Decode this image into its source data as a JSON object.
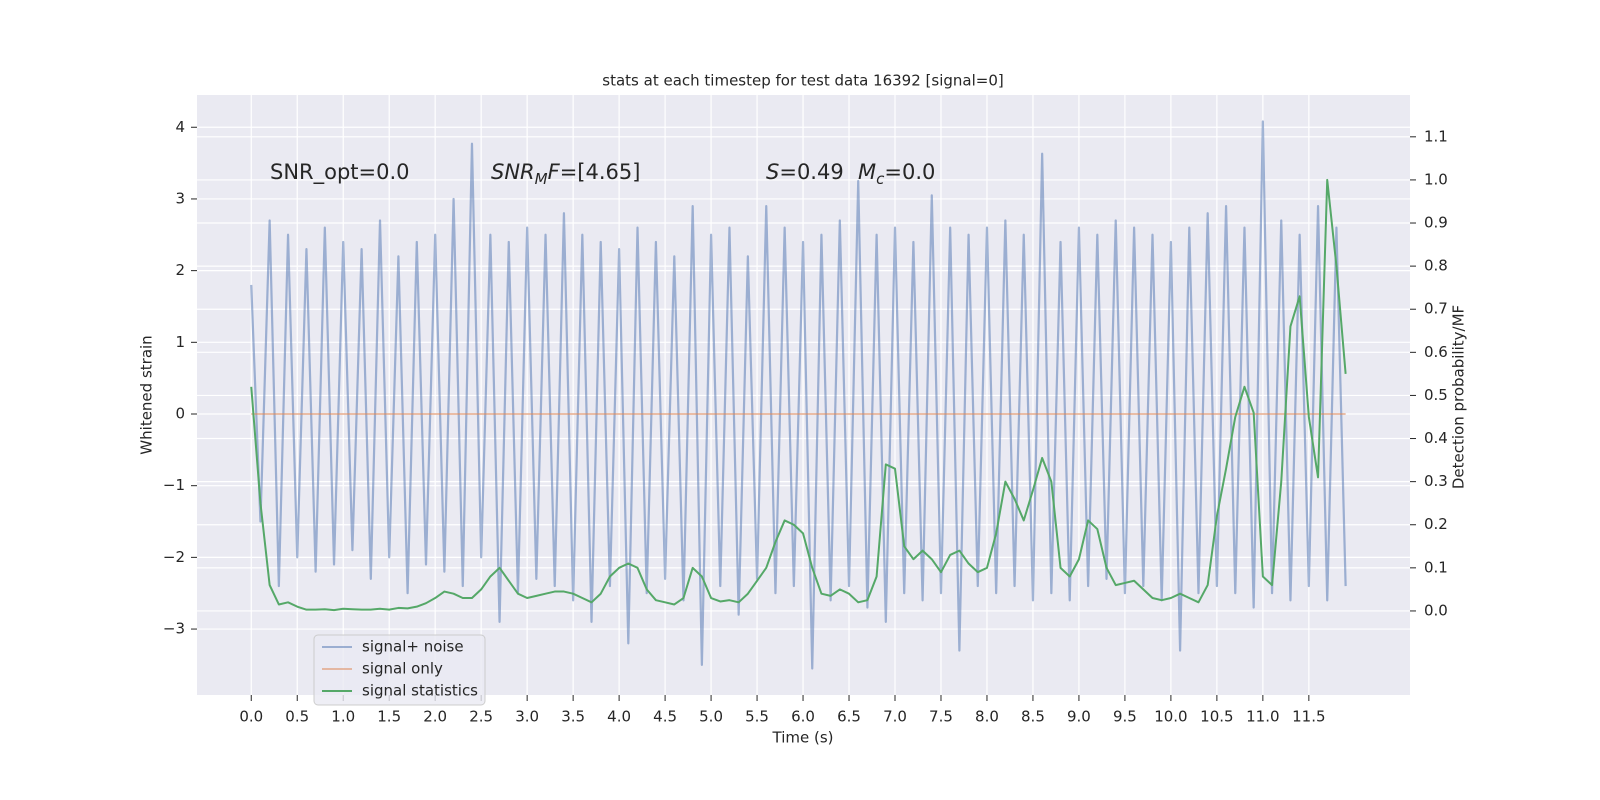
{
  "chart_data": {
    "type": "line",
    "title": "stats at each timestep for test data 16392 [signal=0]",
    "xlabel": "Time (s)",
    "ylabel": "Whitened strain",
    "y2label": "Detection probability/MF",
    "annotations": [
      [
        {
          "text": "SNR_opt=0.0"
        }
      ],
      [
        {
          "text": "SNR",
          "style": "italic"
        },
        {
          "text": "M",
          "style": "italic-sub"
        },
        {
          "text": "F",
          "style": "italic"
        },
        {
          "text": "=[4.65]"
        }
      ],
      [
        {
          "text": "S",
          "style": "italic"
        },
        {
          "text": "=0.49"
        }
      ],
      [
        {
          "text": "M",
          "style": "italic"
        },
        {
          "text": "c",
          "style": "italic-sub"
        },
        {
          "text": "=0.0"
        }
      ]
    ],
    "x": [
      0.0,
      0.1,
      0.2,
      0.3,
      0.4,
      0.5,
      0.6,
      0.7,
      0.8,
      0.9,
      1.0,
      1.1,
      1.2,
      1.3,
      1.4,
      1.5,
      1.6,
      1.7,
      1.8,
      1.9,
      2.0,
      2.1,
      2.2,
      2.3,
      2.4,
      2.5,
      2.6,
      2.7,
      2.8,
      2.9,
      3.0,
      3.1,
      3.2,
      3.3,
      3.4,
      3.5,
      3.6,
      3.7,
      3.8,
      3.9,
      4.0,
      4.1,
      4.2,
      4.3,
      4.4,
      4.5,
      4.6,
      4.7,
      4.8,
      4.9,
      5.0,
      5.1,
      5.2,
      5.3,
      5.4,
      5.5,
      5.6,
      5.7,
      5.8,
      5.9,
      6.0,
      6.1,
      6.2,
      6.3,
      6.4,
      6.5,
      6.6,
      6.7,
      6.8,
      6.9,
      7.0,
      7.1,
      7.2,
      7.3,
      7.4,
      7.5,
      7.6,
      7.7,
      7.8,
      7.9,
      8.0,
      8.1,
      8.2,
      8.3,
      8.4,
      8.5,
      8.6,
      8.7,
      8.8,
      8.9,
      9.0,
      9.1,
      9.2,
      9.3,
      9.4,
      9.5,
      9.6,
      9.7,
      9.8,
      9.9,
      10.0,
      10.1,
      10.2,
      10.3,
      10.4,
      10.5,
      10.6,
      10.7,
      10.8,
      10.9,
      11.0,
      11.1,
      11.2,
      11.3,
      11.4,
      11.5,
      11.6,
      11.7,
      11.8,
      11.9
    ],
    "series": [
      {
        "name": "signal+ noise",
        "color": "#4c72b0",
        "alpha": 0.5,
        "axis": "y",
        "values": [
          1.8,
          -1.5,
          2.7,
          -2.4,
          2.5,
          -2.0,
          2.3,
          -2.2,
          2.6,
          -2.1,
          2.4,
          -1.9,
          2.3,
          -2.3,
          2.7,
          -2.0,
          2.2,
          -2.5,
          2.4,
          -2.1,
          2.5,
          -2.2,
          3.0,
          -2.4,
          3.77,
          -2.0,
          2.5,
          -2.9,
          2.4,
          -2.5,
          2.6,
          -2.3,
          2.5,
          -2.4,
          2.8,
          -2.6,
          2.5,
          -2.9,
          2.4,
          -2.4,
          2.3,
          -3.2,
          2.6,
          -2.5,
          2.4,
          -2.3,
          2.2,
          -2.6,
          2.9,
          -3.5,
          2.5,
          -2.4,
          2.6,
          -2.8,
          2.2,
          -2.3,
          2.9,
          -2.5,
          2.6,
          -2.4,
          2.4,
          -3.55,
          2.5,
          -2.6,
          2.7,
          -2.4,
          3.25,
          -2.7,
          2.5,
          -2.9,
          2.6,
          -2.5,
          2.4,
          -2.6,
          3.05,
          -2.5,
          2.6,
          -3.3,
          2.5,
          -2.4,
          2.6,
          -2.5,
          2.7,
          -2.4,
          2.5,
          -2.6,
          3.63,
          -2.5,
          2.4,
          -2.6,
          2.6,
          -2.4,
          2.5,
          -2.3,
          2.7,
          -2.5,
          2.6,
          -2.4,
          2.5,
          -2.6,
          2.4,
          -3.3,
          2.6,
          -2.5,
          2.8,
          -2.4,
          2.9,
          -2.5,
          2.6,
          -2.7,
          4.08,
          -2.5,
          2.7,
          -2.6,
          2.5,
          -2.4,
          2.9,
          -2.6,
          2.6,
          -2.4
        ]
      },
      {
        "name": "signal only",
        "color": "#dd8452",
        "alpha": 0.5,
        "axis": "y",
        "values": [
          0,
          0,
          0,
          0,
          0,
          0,
          0,
          0,
          0,
          0,
          0,
          0,
          0,
          0,
          0,
          0,
          0,
          0,
          0,
          0,
          0,
          0,
          0,
          0,
          0,
          0,
          0,
          0,
          0,
          0,
          0,
          0,
          0,
          0,
          0,
          0,
          0,
          0,
          0,
          0,
          0,
          0,
          0,
          0,
          0,
          0,
          0,
          0,
          0,
          0,
          0,
          0,
          0,
          0,
          0,
          0,
          0,
          0,
          0,
          0,
          0,
          0,
          0,
          0,
          0,
          0,
          0,
          0,
          0,
          0,
          0,
          0,
          0,
          0,
          0,
          0,
          0,
          0,
          0,
          0,
          0,
          0,
          0,
          0,
          0,
          0,
          0,
          0,
          0,
          0,
          0,
          0,
          0,
          0,
          0,
          0,
          0,
          0,
          0,
          0,
          0,
          0,
          0,
          0,
          0,
          0,
          0,
          0,
          0,
          0,
          0,
          0,
          0,
          0,
          0,
          0,
          0,
          0,
          0,
          0
        ]
      },
      {
        "name": "signal statistics",
        "color": "#55a868",
        "alpha": 1,
        "axis": "y2",
        "values": [
          0.52,
          0.25,
          0.06,
          0.015,
          0.02,
          0.01,
          0.003,
          0.003,
          0.004,
          0.002,
          0.005,
          0.004,
          0.003,
          0.003,
          0.005,
          0.003,
          0.007,
          0.006,
          0.01,
          0.018,
          0.03,
          0.045,
          0.04,
          0.03,
          0.03,
          0.05,
          0.08,
          0.1,
          0.07,
          0.04,
          0.03,
          0.035,
          0.04,
          0.045,
          0.045,
          0.04,
          0.03,
          0.02,
          0.04,
          0.08,
          0.1,
          0.11,
          0.1,
          0.05,
          0.025,
          0.02,
          0.015,
          0.03,
          0.1,
          0.08,
          0.03,
          0.022,
          0.025,
          0.02,
          0.04,
          0.07,
          0.1,
          0.16,
          0.21,
          0.2,
          0.18,
          0.1,
          0.04,
          0.035,
          0.05,
          0.04,
          0.02,
          0.025,
          0.08,
          0.34,
          0.33,
          0.15,
          0.12,
          0.14,
          0.12,
          0.09,
          0.13,
          0.14,
          0.11,
          0.09,
          0.1,
          0.18,
          0.3,
          0.26,
          0.21,
          0.28,
          0.355,
          0.3,
          0.1,
          0.08,
          0.12,
          0.21,
          0.19,
          0.1,
          0.06,
          0.065,
          0.07,
          0.05,
          0.03,
          0.025,
          0.03,
          0.04,
          0.03,
          0.02,
          0.06,
          0.22,
          0.33,
          0.45,
          0.52,
          0.46,
          0.08,
          0.06,
          0.3,
          0.66,
          0.73,
          0.45,
          0.31,
          1.0,
          0.8,
          0.55
        ]
      }
    ],
    "xlim": [
      -0.59,
      12.6
    ],
    "xticks": [
      {
        "value": 0,
        "label": "0.0"
      },
      0.5,
      {
        "value": 1,
        "label": "1.0"
      },
      1.5,
      {
        "value": 2,
        "label": "2.0"
      },
      2.5,
      {
        "value": 3,
        "label": "3.0"
      },
      3.5,
      {
        "value": 4,
        "label": "4.0"
      },
      4.5,
      {
        "value": 5,
        "label": "5.0"
      },
      5.5,
      {
        "value": 6,
        "label": "6.0"
      },
      6.5,
      {
        "value": 7,
        "label": "7.0"
      },
      7.5,
      {
        "value": 8,
        "label": "8.0"
      },
      8.5,
      {
        "value": 9,
        "label": "9.0"
      },
      9.5,
      {
        "value": 10,
        "label": "10.0"
      },
      10.5,
      {
        "value": 11,
        "label": "11.0"
      },
      11.5
    ],
    "ylim": [
      -3.92,
      4.45
    ],
    "yticks": [
      {
        "value": -3,
        "label": "−3"
      },
      {
        "value": -2,
        "label": "−2"
      },
      {
        "value": -1,
        "label": "−1"
      },
      0,
      1,
      2,
      3,
      4
    ],
    "y2lim": [
      -0.195,
      1.197
    ],
    "y2ticks": [
      {
        "value": 0,
        "label": "0.0"
      },
      0.1,
      0.2,
      0.3,
      0.4,
      0.5,
      0.6,
      0.7,
      0.8,
      0.9,
      {
        "value": 1,
        "label": "1.0"
      },
      1.1
    ],
    "grid": true,
    "legend": "lower left"
  }
}
